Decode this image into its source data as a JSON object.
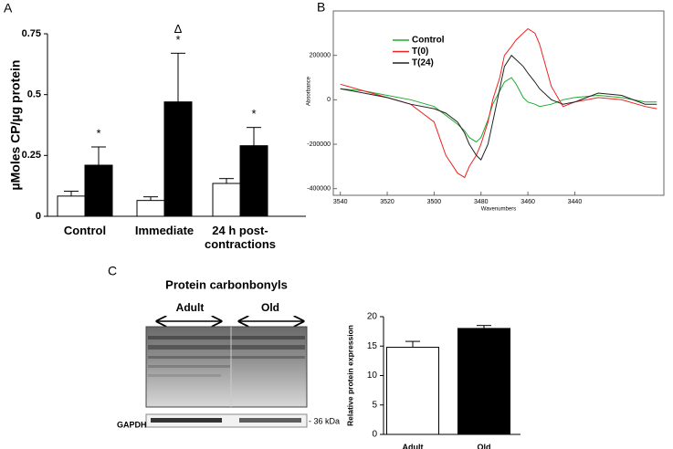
{
  "chart_data": [
    {
      "panel": "A",
      "type": "bar",
      "categories": [
        "Control",
        "Immediate",
        "24 h post-contractions"
      ],
      "series": [
        {
          "color": "#ffffff",
          "values": [
            0.083,
            0.065,
            0.135
          ],
          "errors": [
            0.02,
            0.015,
            0.02
          ]
        },
        {
          "color": "#000000",
          "values": [
            0.21,
            0.47,
            0.29
          ],
          "errors": [
            0.075,
            0.2,
            0.075
          ]
        }
      ],
      "y_label": "µMoles CP/µg protein",
      "ylim": [
        0,
        0.75
      ],
      "yticks": [
        0,
        0.25,
        0.5,
        0.75
      ],
      "annotations": [
        {
          "category": "Control",
          "text": "*"
        },
        {
          "category": "Immediate",
          "text": "*"
        },
        {
          "category": "Immediate",
          "text": "Δ"
        },
        {
          "category": "24 h post-contractions",
          "text": "*"
        }
      ]
    },
    {
      "panel": "B",
      "type": "line",
      "x": [
        3540,
        3530,
        3520,
        3510,
        3500,
        3495,
        3490,
        3487,
        3485,
        3482,
        3480,
        3477,
        3475,
        3472,
        3470,
        3467,
        3465,
        3462,
        3460,
        3457,
        3455,
        3450,
        3445,
        3440,
        3430,
        3420,
        3410,
        3405
      ],
      "series": [
        {
          "name": "Control",
          "color": "#22aa33",
          "values": [
            50000,
            40000,
            20000,
            0,
            -30000,
            -70000,
            -110000,
            -140000,
            -170000,
            -190000,
            -170000,
            -90000,
            -20000,
            40000,
            80000,
            100000,
            70000,
            10000,
            -10000,
            -20000,
            -30000,
            -20000,
            0,
            10000,
            20000,
            10000,
            -10000,
            -10000
          ]
        },
        {
          "name": "T(0)",
          "color": "#ee2222",
          "values": [
            70000,
            40000,
            10000,
            -20000,
            -100000,
            -250000,
            -330000,
            -350000,
            -300000,
            -250000,
            -200000,
            -100000,
            0,
            100000,
            200000,
            240000,
            270000,
            300000,
            320000,
            300000,
            250000,
            60000,
            -30000,
            -10000,
            10000,
            0,
            -30000,
            -40000
          ]
        },
        {
          "name": "T(24)",
          "color": "#222222",
          "values": [
            50000,
            30000,
            10000,
            -20000,
            -40000,
            -60000,
            -100000,
            -150000,
            -200000,
            -250000,
            -270000,
            -200000,
            -100000,
            50000,
            150000,
            200000,
            180000,
            150000,
            120000,
            80000,
            50000,
            0,
            -20000,
            -10000,
            30000,
            20000,
            -20000,
            -20000
          ]
        }
      ],
      "x_label": "Wavenumbers",
      "y_label": "Absorbance",
      "xlim": [
        3543,
        3402
      ],
      "xticks": [
        3540,
        3520,
        3500,
        3480,
        3460,
        3440
      ],
      "ylim": [
        -430000,
        400000
      ],
      "yticks": [
        -400000,
        -200000,
        0,
        200000
      ],
      "legend": "upper left"
    },
    {
      "panel": "C",
      "type": "bar",
      "categories": [
        "Adult",
        "Old"
      ],
      "values": [
        14.8,
        18.0
      ],
      "errors": [
        1.0,
        0.5
      ],
      "colors": [
        "#ffffff",
        "#000000"
      ],
      "y_label": "Relative protein expression",
      "ylim": [
        0,
        20
      ],
      "yticks": [
        0,
        5,
        10,
        15,
        20
      ]
    }
  ],
  "blot": {
    "title": "Protein carbonbonyls",
    "groups": [
      "Adult",
      "Old"
    ],
    "loading_control": "GAPDH",
    "marker": "- 36 kDa"
  }
}
